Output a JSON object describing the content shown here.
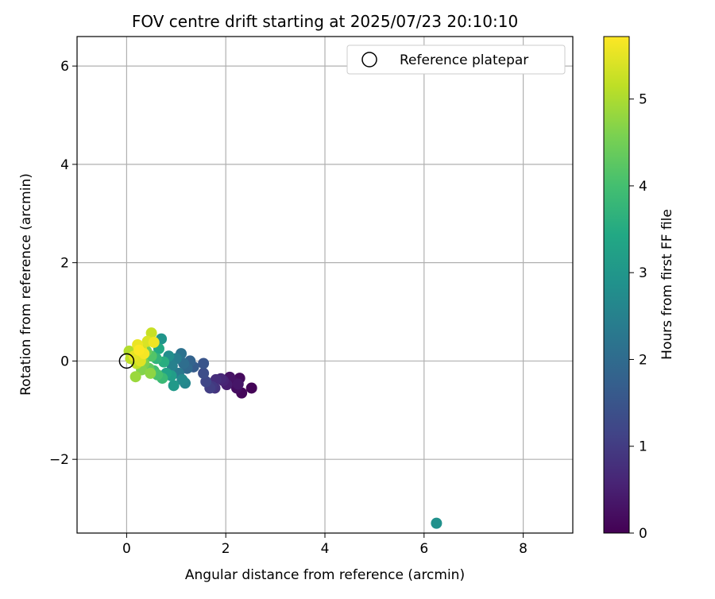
{
  "chart_data": {
    "type": "scatter",
    "title": "FOV centre drift starting at 2025/07/23 20:10:10",
    "xlabel": "Angular distance from reference (arcmin)",
    "ylabel": "Rotation from reference (arcmin)",
    "xlim": [
      -1.0,
      9.0
    ],
    "ylim": [
      -3.5,
      6.6
    ],
    "xticks": [
      0,
      2,
      4,
      6,
      8
    ],
    "yticks": [
      -2,
      0,
      2,
      4,
      6
    ],
    "grid": true,
    "legend": {
      "placement": "top-right",
      "entries": [
        "Reference platepar"
      ]
    },
    "reference_point": {
      "x": 0,
      "y": 0,
      "label": "Reference platepar"
    },
    "colorbar": {
      "label": "Hours from first FF file",
      "min": 0,
      "max": 5.72,
      "ticks": [
        0,
        1,
        2,
        3,
        4,
        5
      ],
      "colormap": "viridis"
    },
    "points": [
      {
        "x": 2.52,
        "y": -0.55,
        "c": 0.05
      },
      {
        "x": 2.32,
        "y": -0.65,
        "c": 0.1
      },
      {
        "x": 2.28,
        "y": -0.35,
        "c": 0.15
      },
      {
        "x": 2.22,
        "y": -0.55,
        "c": 0.2
      },
      {
        "x": 2.15,
        "y": -0.42,
        "c": 0.25
      },
      {
        "x": 2.08,
        "y": -0.33,
        "c": 0.3
      },
      {
        "x": 2.25,
        "y": -0.47,
        "c": 0.35
      },
      {
        "x": 2.02,
        "y": -0.48,
        "c": 0.45
      },
      {
        "x": 1.95,
        "y": -0.4,
        "c": 0.55
      },
      {
        "x": 1.9,
        "y": -0.36,
        "c": 0.65
      },
      {
        "x": 1.8,
        "y": -0.38,
        "c": 0.75
      },
      {
        "x": 1.78,
        "y": -0.55,
        "c": 0.85
      },
      {
        "x": 1.72,
        "y": -0.52,
        "c": 0.95
      },
      {
        "x": 1.68,
        "y": -0.55,
        "c": 1.05
      },
      {
        "x": 1.6,
        "y": -0.42,
        "c": 1.2
      },
      {
        "x": 1.55,
        "y": -0.25,
        "c": 1.35
      },
      {
        "x": 1.55,
        "y": -0.05,
        "c": 1.5
      },
      {
        "x": 1.35,
        "y": -0.12,
        "c": 1.65
      },
      {
        "x": 1.28,
        "y": 0.0,
        "c": 1.8
      },
      {
        "x": 1.22,
        "y": -0.15,
        "c": 1.95
      },
      {
        "x": 1.15,
        "y": -0.05,
        "c": 2.05
      },
      {
        "x": 1.1,
        "y": 0.15,
        "c": 2.15
      },
      {
        "x": 1.05,
        "y": -0.25,
        "c": 2.3
      },
      {
        "x": 1.0,
        "y": 0.05,
        "c": 2.4
      },
      {
        "x": 0.92,
        "y": -0.1,
        "c": 2.5
      },
      {
        "x": 1.18,
        "y": -0.45,
        "c": 2.6
      },
      {
        "x": 1.12,
        "y": -0.38,
        "c": 2.7
      },
      {
        "x": 0.85,
        "y": 0.1,
        "c": 2.8
      },
      {
        "x": 0.7,
        "y": 0.45,
        "c": 2.95
      },
      {
        "x": 6.25,
        "y": -3.3,
        "c": 2.85
      },
      {
        "x": 0.95,
        "y": -0.5,
        "c": 3.05
      },
      {
        "x": 0.9,
        "y": -0.3,
        "c": 3.15
      },
      {
        "x": 0.8,
        "y": -0.25,
        "c": 3.3
      },
      {
        "x": 0.65,
        "y": 0.25,
        "c": 3.45
      },
      {
        "x": 0.75,
        "y": -0.02,
        "c": 3.55
      },
      {
        "x": 0.6,
        "y": 0.05,
        "c": 3.7
      },
      {
        "x": 0.72,
        "y": -0.35,
        "c": 3.85
      },
      {
        "x": 0.55,
        "y": -0.2,
        "c": 3.95
      },
      {
        "x": 0.62,
        "y": -0.28,
        "c": 4.05
      },
      {
        "x": 0.5,
        "y": 0.1,
        "c": 4.15
      },
      {
        "x": 0.45,
        "y": -0.15,
        "c": 4.3
      },
      {
        "x": 0.4,
        "y": 0.2,
        "c": 4.45
      },
      {
        "x": 0.35,
        "y": -0.05,
        "c": 4.55
      },
      {
        "x": 0.3,
        "y": -0.18,
        "c": 4.65
      },
      {
        "x": 0.48,
        "y": -0.25,
        "c": 4.75
      },
      {
        "x": 0.18,
        "y": -0.32,
        "c": 4.85
      },
      {
        "x": 0.25,
        "y": 0.1,
        "c": 4.95
      },
      {
        "x": 0.05,
        "y": 0.2,
        "c": 5.05
      },
      {
        "x": 0.08,
        "y": 0.05,
        "c": 5.15
      },
      {
        "x": 0.2,
        "y": -0.05,
        "c": 5.2
      },
      {
        "x": 0.5,
        "y": 0.57,
        "c": 5.25
      },
      {
        "x": 0.3,
        "y": 0.28,
        "c": 5.35
      },
      {
        "x": 0.42,
        "y": 0.4,
        "c": 5.4
      },
      {
        "x": 0.28,
        "y": 0.0,
        "c": 5.45
      },
      {
        "x": 0.15,
        "y": 0.1,
        "c": 5.5
      },
      {
        "x": 0.22,
        "y": 0.33,
        "c": 5.55
      },
      {
        "x": 0.55,
        "y": 0.38,
        "c": 5.6
      },
      {
        "x": 0.35,
        "y": 0.15,
        "c": 5.65
      },
      {
        "x": 0.25,
        "y": 0.22,
        "c": 5.7
      }
    ]
  }
}
